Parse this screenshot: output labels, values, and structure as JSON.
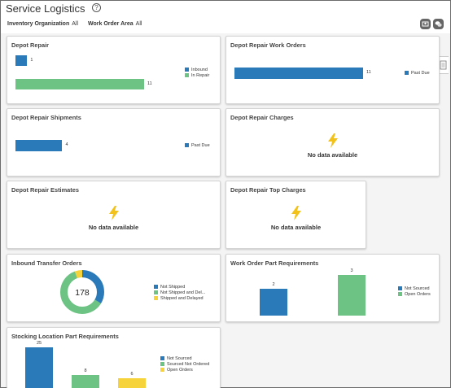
{
  "page": {
    "title": "Service Logistics",
    "filters": [
      {
        "label": "Inventory Organization",
        "value": "All"
      },
      {
        "label": "Work Order Area",
        "value": "All"
      }
    ]
  },
  "colors": {
    "blue": "#2a7ab9",
    "green": "#6cc383",
    "yellow": "#f6d23b"
  },
  "cards": {
    "depot_repair": {
      "title": "Depot Repair"
    },
    "depot_repair_work_orders": {
      "title": "Depot Repair Work Orders"
    },
    "depot_repair_shipments": {
      "title": "Depot Repair Shipments"
    },
    "depot_repair_charges": {
      "title": "Depot Repair Charges",
      "empty_text": "No data available"
    },
    "depot_repair_estimates": {
      "title": "Depot Repair Estimates",
      "empty_text": "No data available"
    },
    "depot_repair_top_charges": {
      "title": "Depot Repair Top Charges",
      "empty_text": "No data available"
    },
    "inbound_transfer_orders": {
      "title": "Inbound Transfer Orders"
    },
    "work_order_part_requirements": {
      "title": "Work Order Part Requirements"
    },
    "stocking_location_part_requirements": {
      "title": "Stocking Location Part Requirements"
    }
  },
  "chart_data": [
    {
      "id": "depot_repair",
      "type": "bar",
      "orientation": "horizontal",
      "series": [
        {
          "name": "Inbound",
          "value": 1,
          "color": "#2a7ab9"
        },
        {
          "name": "In Repair",
          "value": 11,
          "color": "#6cc383"
        }
      ]
    },
    {
      "id": "depot_repair_work_orders",
      "type": "bar",
      "orientation": "horizontal",
      "series": [
        {
          "name": "Past Due",
          "value": 11,
          "color": "#2a7ab9"
        }
      ]
    },
    {
      "id": "depot_repair_shipments",
      "type": "bar",
      "orientation": "horizontal",
      "series": [
        {
          "name": "Past Due",
          "value": 4,
          "color": "#2a7ab9"
        }
      ]
    },
    {
      "id": "inbound_transfer_orders",
      "type": "pie",
      "donut": true,
      "total": "178",
      "series": [
        {
          "name": "Not Shipped",
          "value": 60,
          "color": "#2a7ab9"
        },
        {
          "name": "Not Shipped and Del...",
          "value": 108,
          "color": "#6cc383"
        },
        {
          "name": "Shipped and Delayed",
          "value": 10,
          "color": "#f6d23b"
        }
      ]
    },
    {
      "id": "work_order_part_requirements",
      "type": "bar",
      "orientation": "vertical",
      "series": [
        {
          "name": "Not Sourced",
          "value": 2,
          "color": "#2a7ab9"
        },
        {
          "name": "Open Orders",
          "value": 3,
          "color": "#6cc383"
        }
      ]
    },
    {
      "id": "stocking_location_part_requirements",
      "type": "bar",
      "orientation": "vertical",
      "series": [
        {
          "name": "Not Sourced",
          "value": 25,
          "color": "#2a7ab9"
        },
        {
          "name": "Sourced Not Ordered",
          "value": 8,
          "color": "#6cc383"
        },
        {
          "name": "Open Orders",
          "value": 6,
          "color": "#f6d23b"
        }
      ]
    }
  ]
}
